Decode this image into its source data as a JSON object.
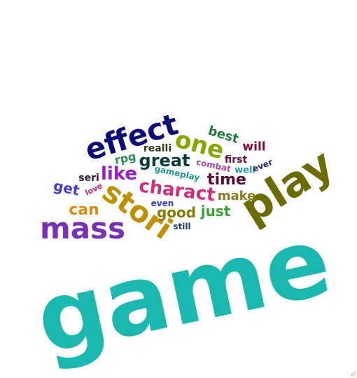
{
  "word_cloud": {
    "words": [
      {
        "text": "game",
        "color": "#1bb8b0"
      },
      {
        "text": "play",
        "color": "#6b6b00"
      },
      {
        "text": "mass",
        "color": "#7a2fb5"
      },
      {
        "text": "stori",
        "color": "#c09000"
      },
      {
        "text": "effect",
        "color": "#0b0b7a"
      },
      {
        "text": "one",
        "color": "#8aa500"
      },
      {
        "text": "charact",
        "color": "#d12d7e"
      },
      {
        "text": "great",
        "color": "#0b3b3b"
      },
      {
        "text": "like",
        "color": "#9a1fc0"
      },
      {
        "text": "time",
        "color": "#5a0a3a"
      },
      {
        "text": "can",
        "color": "#d98a10"
      },
      {
        "text": "good",
        "color": "#8a7a00"
      },
      {
        "text": "just",
        "color": "#3aa030"
      },
      {
        "text": "make",
        "color": "#8a7a20"
      },
      {
        "text": "get",
        "color": "#4a3ad0"
      },
      {
        "text": "best",
        "color": "#1f7a3a"
      },
      {
        "text": "will",
        "color": "#8a0a3a"
      },
      {
        "text": "first",
        "color": "#6a1030"
      },
      {
        "text": "realli",
        "color": "#2a3a1a"
      },
      {
        "text": "rpg",
        "color": "#2a8a5a"
      },
      {
        "text": "seri",
        "color": "#2a1a3a"
      },
      {
        "text": "gameplay",
        "color": "#1f9a8a"
      },
      {
        "text": "combat",
        "color": "#a04aa0"
      },
      {
        "text": "well",
        "color": "#2a9a9a"
      },
      {
        "text": "ever",
        "color": "#1a2a7a"
      },
      {
        "text": "love",
        "color": "#d02080"
      },
      {
        "text": "even",
        "color": "#3a3ad0"
      },
      {
        "text": "still",
        "color": "#1a3a6a"
      }
    ]
  }
}
